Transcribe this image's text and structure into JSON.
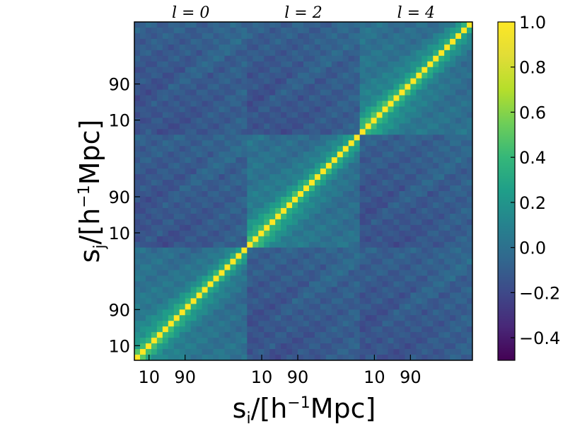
{
  "chart_data": {
    "type": "heatmap",
    "title": "",
    "xlabel": "s_i/[h^-1 Mpc]",
    "ylabel": "s_j/[h^-1 Mpc]",
    "multipole_labels": [
      "l = 0",
      "l = 2",
      "l = 4"
    ],
    "block_tick_labels": [
      "10",
      "90"
    ],
    "bins_per_block": 20,
    "num_blocks": 3,
    "colorbar": {
      "colormap": "viridis",
      "vmin": -0.5,
      "vmax": 1.0,
      "ticks": [
        1.0,
        0.8,
        0.6,
        0.4,
        0.2,
        0.0,
        -0.2,
        -0.4
      ],
      "tick_labels": [
        "1.0",
        "0.8",
        "0.6",
        "0.4",
        "0.2",
        "0.0",
        "−0.2",
        "−0.4"
      ]
    },
    "description_values": {
      "diagonal": 1.0,
      "within_block_offdiagonal_range": [
        -0.25,
        0.5
      ],
      "cross_block_range": [
        -0.35,
        0.15
      ]
    }
  }
}
